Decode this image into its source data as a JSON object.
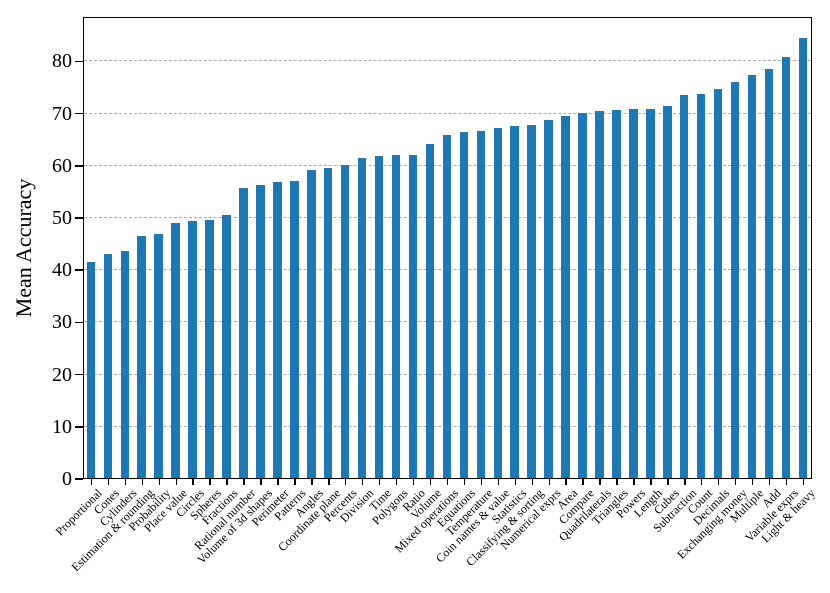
{
  "chart_data": {
    "type": "bar",
    "title": "",
    "xlabel": "",
    "ylabel": "Mean Accuracy",
    "ylim": [
      0,
      88.5
    ],
    "yticks": [
      0,
      10,
      20,
      30,
      40,
      50,
      60,
      70,
      80
    ],
    "grid": "horizontal-dashed",
    "legend": "none",
    "bar_color": "#1f77b4",
    "gridline_color": "#ababab",
    "axis_color": "#000000",
    "categories": [
      "Proportional",
      "Cones",
      "Cylinders",
      "Estimation & rounding",
      "Probability",
      "Place value",
      "Circles",
      "Spheres",
      "Fractions",
      "Rational number",
      "Volume of 3d shapes",
      "Perimeter",
      "Patterns",
      "Angles",
      "Coordinate plane",
      "Percents",
      "Division",
      "Time",
      "Polygons",
      "Ratio",
      "Volume",
      "Mixed operations",
      "Equations",
      "Temperature",
      "Coin names & value",
      "Statistics",
      "Classifying & sorting",
      "Numerical exprs",
      "Area",
      "Compare",
      "Quadrilaterals",
      "Triangles",
      "Powers",
      "Length",
      "Cubes",
      "Subtraction",
      "Count",
      "Decimals",
      "Exchanging money",
      "Multiple",
      "Add",
      "Variable exprs",
      "Light & heavy"
    ],
    "values": [
      41.4,
      43.0,
      43.4,
      46.3,
      46.8,
      48.9,
      49.3,
      49.5,
      50.4,
      55.6,
      56.1,
      56.7,
      56.9,
      59.0,
      59.4,
      59.9,
      61.3,
      61.7,
      61.8,
      61.9,
      63.9,
      65.8,
      66.2,
      66.4,
      67.0,
      67.4,
      67.6,
      68.6,
      69.4,
      70.0,
      70.3,
      70.5,
      70.6,
      70.7,
      71.2,
      73.3,
      73.5,
      74.6,
      75.9,
      77.2,
      78.4,
      80.7,
      84.3
    ]
  }
}
